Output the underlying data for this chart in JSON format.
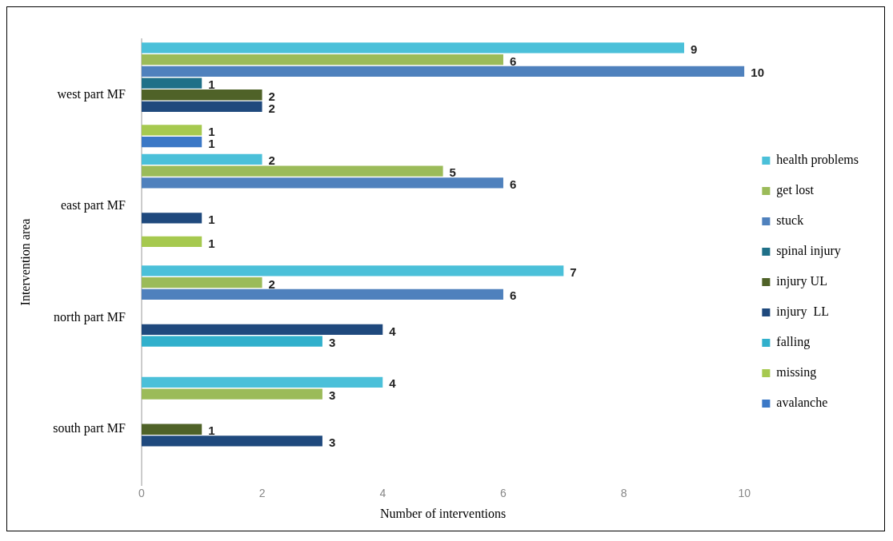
{
  "chart_data": {
    "type": "bar",
    "orientation": "horizontal",
    "xlabel": "Number of interventions",
    "ylabel": "Intervention area",
    "categories": [
      "west part MF",
      "east part MF",
      "north part MF",
      "south part MF"
    ],
    "series": [
      {
        "name": "health problems",
        "color": "#4bc0d9",
        "values": [
          9,
          2,
          7,
          4
        ]
      },
      {
        "name": "get lost",
        "color": "#9bbb59",
        "values": [
          6,
          5,
          2,
          3
        ]
      },
      {
        "name": "stuck",
        "color": "#4f81bd",
        "values": [
          10,
          6,
          6,
          null
        ]
      },
      {
        "name": "spinal injury",
        "color": "#1f7088",
        "values": [
          1,
          null,
          null,
          null
        ]
      },
      {
        "name": "injury UL",
        "color": "#4f6228",
        "values": [
          2,
          null,
          null,
          1
        ]
      },
      {
        "name": "injury  LL",
        "color": "#1f497d",
        "values": [
          2,
          1,
          4,
          3
        ]
      },
      {
        "name": "falling",
        "color": "#31b0cc",
        "values": [
          null,
          null,
          3,
          null
        ]
      },
      {
        "name": "missing",
        "color": "#a6c94f",
        "values": [
          1,
          1,
          null,
          null
        ]
      },
      {
        "name": "avalanche",
        "color": "#3b78c6",
        "values": [
          1,
          null,
          null,
          null
        ]
      }
    ],
    "xlim": [
      0,
      10
    ],
    "xticks": [
      0,
      2,
      4,
      6,
      8,
      10
    ],
    "grid": false,
    "legend": "right",
    "data_labels": true
  }
}
